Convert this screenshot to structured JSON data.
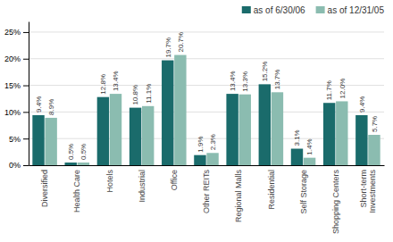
{
  "chart_data": {
    "type": "bar",
    "categories": [
      "Diversified",
      "Health Care",
      "Hotels",
      "Industrial",
      "Office",
      "Other REITs",
      "Regional Malls",
      "Residential",
      "Self Storage",
      "Shopping Centers",
      "Short-term\nInvestments"
    ],
    "series": [
      {
        "name": "as of 6/30/06",
        "color": "#1a6b6b",
        "values": [
          9.4,
          0.5,
          12.8,
          10.8,
          19.7,
          1.9,
          13.4,
          15.2,
          3.1,
          11.7,
          9.4
        ],
        "value_labels": [
          "9.4%",
          "0.5%",
          "12.8%",
          "10.8%",
          "19.7%",
          "1.9%",
          "13.4%",
          "15.2%",
          "3.1%",
          "11.7%",
          "9.4%"
        ]
      },
      {
        "name": "as of 12/31/05",
        "color": "#8bbcb0",
        "values": [
          8.9,
          0.5,
          13.4,
          11.1,
          20.7,
          2.3,
          13.3,
          13.7,
          1.4,
          12.0,
          5.7
        ],
        "value_labels": [
          "8.9%",
          "0.5%",
          "13.4%",
          "11.1%",
          "20.7%",
          "2.3%",
          "13.3%",
          "13.7%",
          "1.4%",
          "12.0%",
          "5.7%"
        ]
      }
    ],
    "ylim": [
      0,
      27
    ],
    "yticks": [
      {
        "value": 0,
        "label": "0%"
      },
      {
        "value": 5,
        "label": "5%"
      },
      {
        "value": 10,
        "label": "10%"
      },
      {
        "value": 15,
        "label": "15%"
      },
      {
        "value": 20,
        "label": "20%"
      },
      {
        "value": 25,
        "label": "25%"
      }
    ],
    "grid": true,
    "legend": "upper right",
    "data_labels": true
  }
}
